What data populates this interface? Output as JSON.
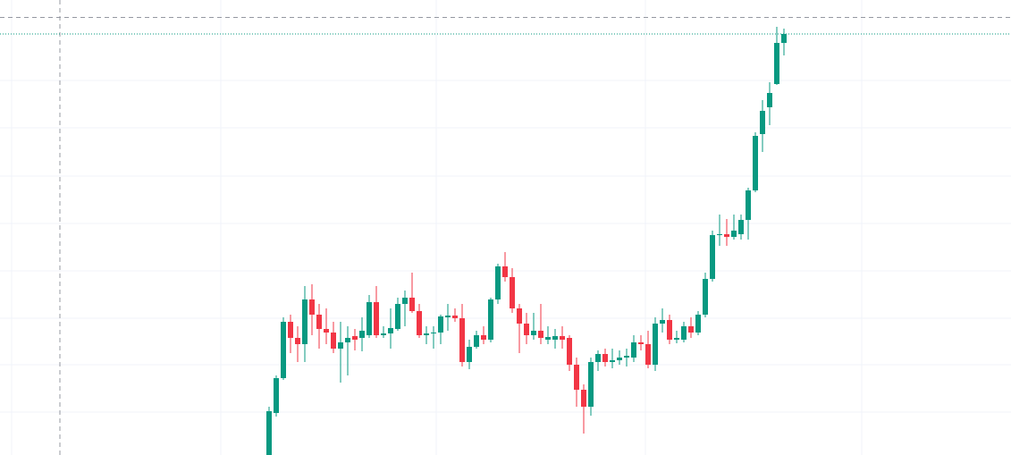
{
  "chart_data": {
    "type": "candlestick",
    "up_color": "#089981",
    "down_color": "#f23645",
    "ylim": [
      0,
      509
    ],
    "open": [
      0,
      47,
      86,
      149,
      131,
      124,
      174,
      157,
      141,
      137,
      119,
      126,
      133,
      131,
      134,
      171,
      134,
      136,
      141,
      169,
      176,
      161,
      134,
      136,
      137,
      154,
      156,
      153,
      104,
      121,
      134,
      129,
      174,
      211,
      199,
      164,
      147,
      134,
      139,
      129,
      129,
      133,
      131,
      101,
      73,
      54,
      104,
      113,
      104,
      106,
      109,
      109,
      126,
      124,
      101,
      147,
      151,
      129,
      129,
      144,
      137,
      157,
      197,
      246,
      247,
      244,
      247,
      263,
      296,
      359,
      389,
      415,
      461
    ],
    "high": [
      54,
      89,
      154,
      157,
      144,
      189,
      191,
      169,
      164,
      149,
      149,
      144,
      141,
      154,
      179,
      189,
      144,
      164,
      176,
      184,
      204,
      169,
      144,
      144,
      157,
      169,
      164,
      169,
      129,
      139,
      144,
      176,
      214,
      227,
      209,
      169,
      159,
      159,
      169,
      144,
      141,
      144,
      134,
      109,
      79,
      109,
      117,
      119,
      119,
      117,
      119,
      134,
      134,
      139,
      154,
      164,
      157,
      139,
      149,
      154,
      161,
      204,
      251,
      269,
      264,
      269,
      269,
      299,
      361,
      397,
      417,
      479,
      477
    ],
    "low": [
      0,
      43,
      84,
      114,
      104,
      104,
      134,
      119,
      124,
      114,
      81,
      89,
      117,
      116,
      131,
      131,
      131,
      119,
      139,
      144,
      159,
      131,
      124,
      119,
      124,
      139,
      149,
      99,
      96,
      119,
      124,
      126,
      169,
      194,
      159,
      114,
      124,
      129,
      124,
      124,
      119,
      119,
      94,
      54,
      24,
      44,
      94,
      99,
      97,
      101,
      99,
      104,
      117,
      97,
      94,
      137,
      124,
      125,
      126,
      131,
      134,
      154,
      194,
      234,
      234,
      241,
      241,
      241,
      294,
      339,
      369,
      414,
      447
    ],
    "close": [
      49,
      86,
      149,
      131,
      124,
      174,
      157,
      141,
      137,
      119,
      126,
      131,
      129,
      139,
      171,
      134,
      136,
      142,
      169,
      176,
      161,
      134,
      136,
      137,
      155,
      156,
      153,
      104,
      121,
      134,
      129,
      174,
      211,
      199,
      164,
      147,
      134,
      139,
      131,
      132,
      133,
      129,
      101,
      73,
      54,
      104,
      113,
      104,
      106,
      109,
      111,
      126,
      124,
      101,
      147,
      151,
      129,
      131,
      144,
      137,
      157,
      197,
      246,
      247,
      244,
      251,
      263,
      296,
      357,
      385,
      405,
      461,
      471
    ]
  }
}
